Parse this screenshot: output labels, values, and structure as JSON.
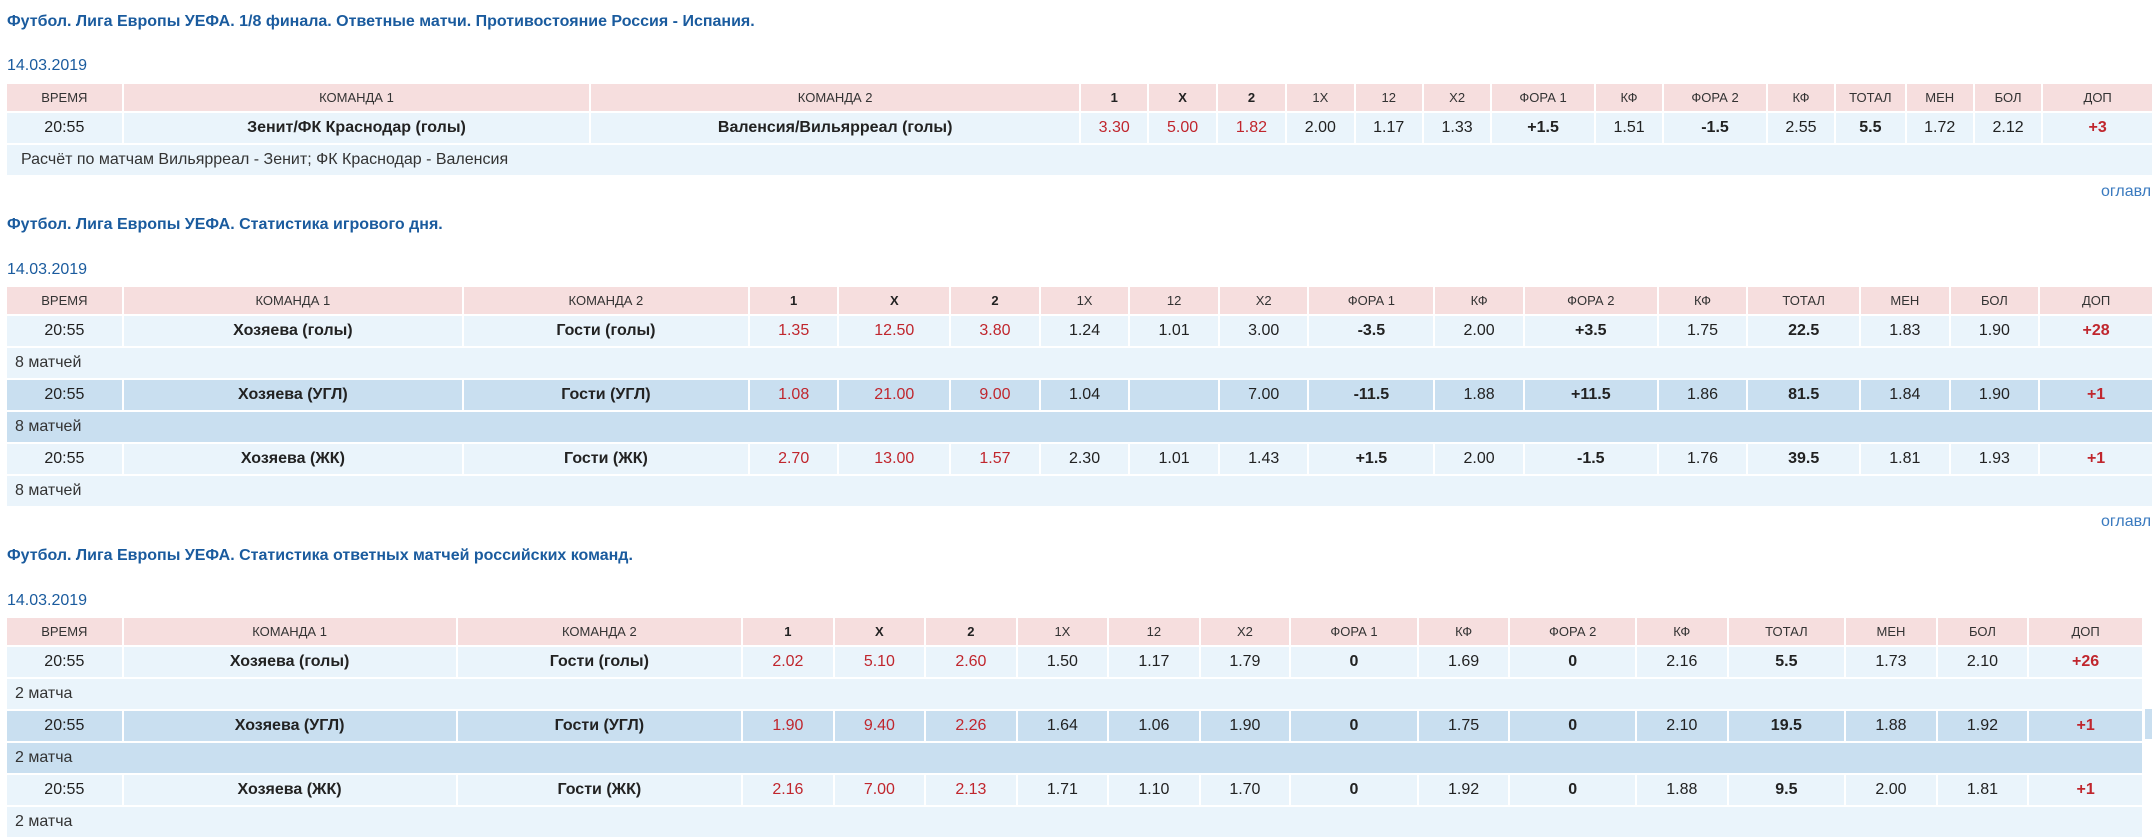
{
  "headers": [
    "ВРЕМЯ",
    "КОМАНДА 1",
    "КОМАНДА 2",
    "1",
    "X",
    "2",
    "1X",
    "12",
    "X2",
    "ФОРА 1",
    "КФ",
    "ФОРА 2",
    "КФ",
    "ТОТАЛ",
    "МЕН",
    "БОЛ",
    "ДОП"
  ],
  "toc_label": "оглавл",
  "sections": [
    {
      "title": "Футбол. Лига Европы УЕФА. 1/8 финала. Ответные матчи. Противостояние Россия - Испания.",
      "date": "14.03.2019",
      "rows": [
        {
          "time": "20:55",
          "team1": "Зенит/ФК Краснодар (голы)",
          "team2": "Валенсия/Вильярреал (голы)",
          "o1": "3.30",
          "ox": "5.00",
          "o2": "1.82",
          "d1x": "2.00",
          "d12": "1.17",
          "dx2": "1.33",
          "fora1": "+1.5",
          "kf1": "1.51",
          "fora2": "-1.5",
          "kf2": "2.55",
          "total": "5.5",
          "under": "1.72",
          "over": "2.12",
          "extra": "+3",
          "note": "Расчёт по матчам Вильярреал - Зенит; ФК Краснодар - Валенсия"
        }
      ]
    },
    {
      "title": "Футбол. Лига Европы УЕФА. Статистика игрового дня.",
      "date": "14.03.2019",
      "rows": [
        {
          "time": "20:55",
          "team1": "Хозяева (голы)",
          "team2": "Гости (голы)",
          "o1": "1.35",
          "ox": "12.50",
          "o2": "3.80",
          "d1x": "1.24",
          "d12": "1.01",
          "dx2": "3.00",
          "fora1": "-3.5",
          "kf1": "2.00",
          "fora2": "+3.5",
          "kf2": "1.75",
          "total": "22.5",
          "under": "1.83",
          "over": "1.90",
          "extra": "+28",
          "note": "8 матчей"
        },
        {
          "time": "20:55",
          "team1": "Хозяева (УГЛ)",
          "team2": "Гости (УГЛ)",
          "o1": "1.08",
          "ox": "21.00",
          "o2": "9.00",
          "d1x": "1.04",
          "d12": "",
          "dx2": "7.00",
          "fora1": "-11.5",
          "kf1": "1.88",
          "fora2": "+11.5",
          "kf2": "1.86",
          "total": "81.5",
          "under": "1.84",
          "over": "1.90",
          "extra": "+1",
          "note": "8 матчей"
        },
        {
          "time": "20:55",
          "team1": "Хозяева (ЖК)",
          "team2": "Гости (ЖК)",
          "o1": "2.70",
          "ox": "13.00",
          "o2": "1.57",
          "d1x": "2.30",
          "d12": "1.01",
          "dx2": "1.43",
          "fora1": "+1.5",
          "kf1": "2.00",
          "fora2": "-1.5",
          "kf2": "1.76",
          "total": "39.5",
          "under": "1.81",
          "over": "1.93",
          "extra": "+1",
          "note": "8 матчей"
        }
      ]
    },
    {
      "title": "Футбол. Лига Европы УЕФА. Статистика ответных матчей российских команд.",
      "date": "14.03.2019",
      "rows": [
        {
          "time": "20:55",
          "team1": "Хозяева (голы)",
          "team2": "Гости (голы)",
          "o1": "2.02",
          "ox": "5.10",
          "o2": "2.60",
          "d1x": "1.50",
          "d12": "1.17",
          "dx2": "1.79",
          "fora1": "0",
          "kf1": "1.69",
          "fora2": "0",
          "kf2": "2.16",
          "total": "5.5",
          "under": "1.73",
          "over": "2.10",
          "extra": "+26",
          "note": "2 матча"
        },
        {
          "time": "20:55",
          "team1": "Хозяева (УГЛ)",
          "team2": "Гости (УГЛ)",
          "o1": "1.90",
          "ox": "9.40",
          "o2": "2.26",
          "d1x": "1.64",
          "d12": "1.06",
          "dx2": "1.90",
          "fora1": "0",
          "kf1": "1.75",
          "fora2": "0",
          "kf2": "2.10",
          "total": "19.5",
          "under": "1.88",
          "over": "1.92",
          "extra": "+1",
          "note": "2 матча"
        },
        {
          "time": "20:55",
          "team1": "Хозяева (ЖК)",
          "team2": "Гости (ЖК)",
          "o1": "2.16",
          "ox": "7.00",
          "o2": "2.13",
          "d1x": "1.71",
          "d12": "1.10",
          "dx2": "1.70",
          "fora1": "0",
          "kf1": "1.92",
          "fora2": "0",
          "kf2": "1.88",
          "total": "9.5",
          "under": "2.00",
          "over": "1.81",
          "extra": "+1",
          "note": "2 матча"
        }
      ]
    }
  ]
}
